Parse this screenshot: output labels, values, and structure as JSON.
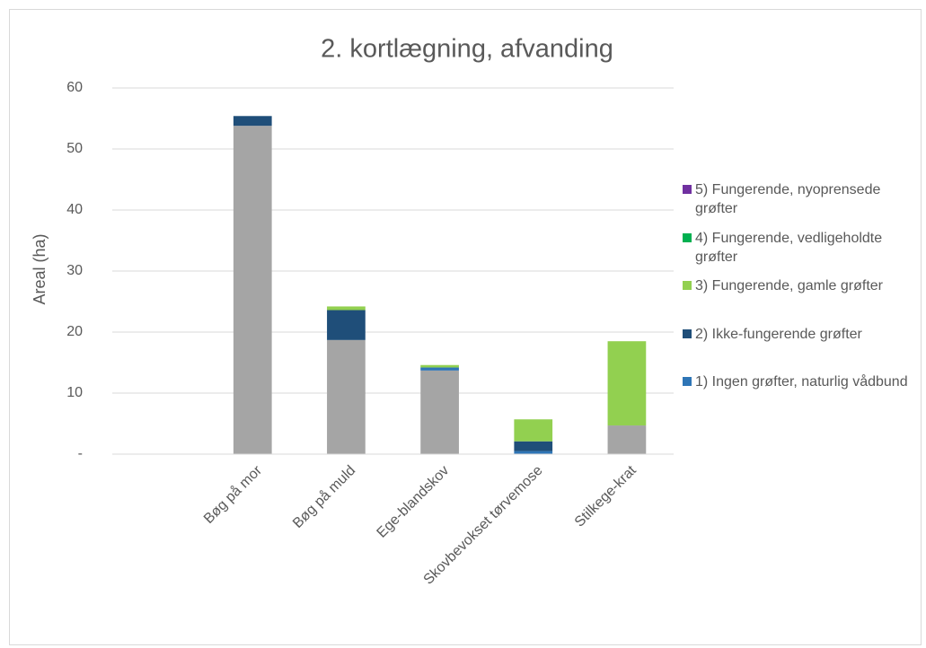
{
  "chart_data": {
    "type": "stacked_bar",
    "title": "2. kortlægning, afvanding",
    "y_label": "Areal (ha)",
    "categories": [
      null,
      "Bøg på mor",
      "Bøg på muld",
      "Ege-blandskov",
      "Skovbevokset tørvemose",
      "Stilkege-krat"
    ],
    "series": [
      {
        "name": null,
        "color": "#a5a5a5",
        "values": [
          0,
          53.8,
          18.7,
          13.7,
          0,
          4.7
        ]
      },
      {
        "name": "1) Ingen grøfter, naturlig vådbund",
        "color": "#2e75b6",
        "values": [
          0,
          0,
          0,
          0.5,
          0.5,
          0
        ]
      },
      {
        "name": "2) Ikke-fungerende grøfter",
        "color": "#1f4e79",
        "values": [
          0,
          1.6,
          4.9,
          0,
          1.6,
          0
        ]
      },
      {
        "name": "3) Fungerende, gamle grøfter",
        "color": "#92d050",
        "values": [
          0,
          0,
          0.6,
          0.4,
          3.6,
          13.8
        ]
      },
      {
        "name": "4) Fungerende, vedligeholdte grøfter",
        "color": "#00b050",
        "values": [
          0,
          0,
          0,
          0,
          0,
          0
        ]
      },
      {
        "name": "5) Fungerende, nyoprensede grøfter",
        "color": "#7030a0",
        "values": [
          0,
          0,
          0,
          0,
          0,
          0
        ]
      }
    ],
    "ylim": [
      0,
      60
    ],
    "yticks": [
      {
        "value": 0,
        "label": "-"
      },
      10,
      20,
      30,
      40,
      50,
      60
    ],
    "grid": true
  }
}
